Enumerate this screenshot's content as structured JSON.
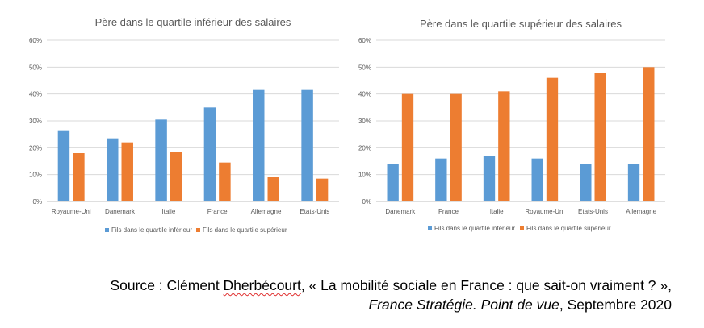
{
  "chart_data": [
    {
      "type": "bar",
      "title": "Père dans le quartile inférieur des salaires",
      "categories": [
        "Royaume-Uni",
        "Danemark",
        "Italie",
        "France",
        "Allemagne",
        "Etats-Unis"
      ],
      "series": [
        {
          "name": "Fils dans le quartile inférieur",
          "values": [
            26.5,
            23.5,
            30.5,
            35,
            41.5,
            41.5
          ]
        },
        {
          "name": "Fils dans le quartile supérieur",
          "values": [
            18,
            22,
            18.5,
            14.5,
            9,
            8.5
          ]
        }
      ],
      "y_ticks": [
        "0%",
        "10%",
        "20%",
        "30%",
        "40%",
        "50%",
        "60%"
      ],
      "ylim": [
        0,
        60
      ],
      "grid": true,
      "legend_position": "bottom"
    },
    {
      "type": "bar",
      "title": "Père dans le quartile supérieur des salaires",
      "categories": [
        "Danemark",
        "France",
        "Italie",
        "Royaume-Uni",
        "Etats-Unis",
        "Allemagne"
      ],
      "series": [
        {
          "name": "Fils dans le quartile inférieur",
          "values": [
            14,
            16,
            17,
            16,
            14,
            14
          ]
        },
        {
          "name": "Fils dans le quartile supérieur",
          "values": [
            40,
            40,
            41,
            46,
            48,
            50
          ]
        }
      ],
      "y_ticks": [
        "0%",
        "10%",
        "20%",
        "30%",
        "40%",
        "50%",
        "60%"
      ],
      "ylim": [
        0,
        60
      ],
      "grid": true,
      "legend_position": "bottom"
    }
  ],
  "colors": {
    "series_1": "#5b9bd5",
    "series_2": "#ed7d31"
  },
  "source": {
    "prefix": "Source : Clément ",
    "author_surname": "Dherbécourt",
    "title_rest": ", « La mobilité sociale en France : que sait-on vraiment ? »,",
    "publication": "France Stratégie. Point de vue",
    "date_rest": ", Septembre 2020"
  }
}
